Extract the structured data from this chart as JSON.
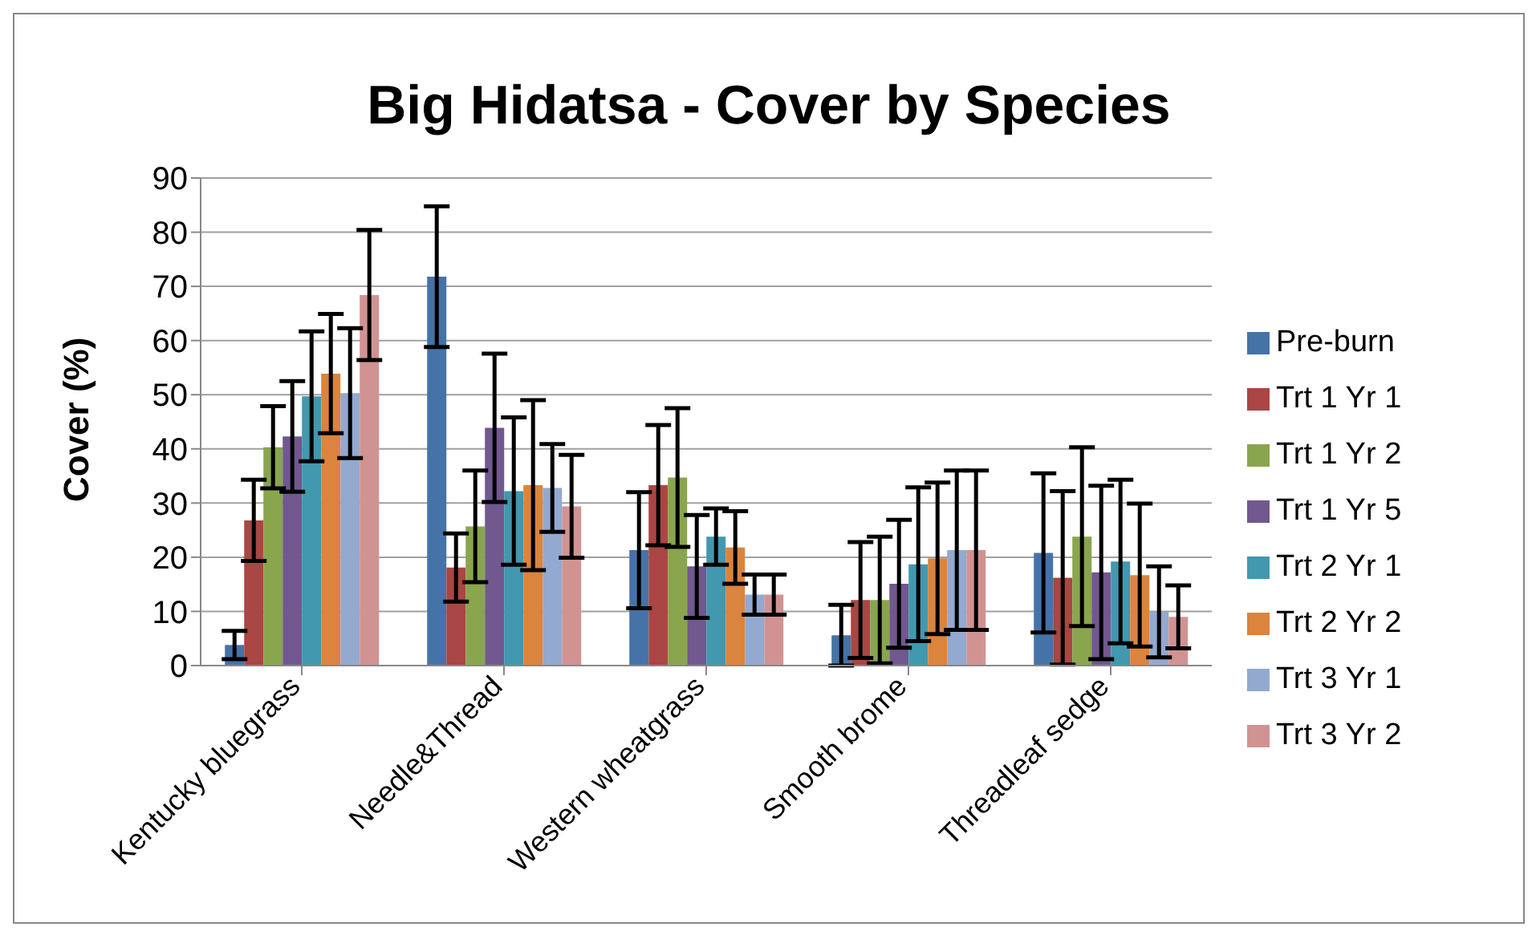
{
  "chart_data": {
    "type": "bar",
    "title": "Big Hidatsa - Cover by Species",
    "ylabel": "Cover (%)",
    "categories": [
      "Kentucky bluegrass",
      "Needle&Thread",
      "Western wheatgrass",
      "Smooth brome",
      "Threadleaf sedge"
    ],
    "series": [
      {
        "name": "Pre-burn",
        "color": "#4573a8",
        "values": [
          3.8,
          71.8,
          21.3,
          5.6,
          20.8
        ],
        "errors": [
          2.6,
          13,
          10.7,
          5.6,
          14.7
        ]
      },
      {
        "name": "Trt 1 Yr 1",
        "color": "#aa4643",
        "values": [
          26.8,
          18.1,
          33.3,
          12.1,
          16.2
        ],
        "errors": [
          7.5,
          6.3,
          11.1,
          10.7,
          16
        ]
      },
      {
        "name": "Trt 1 Yr 2",
        "color": "#89a54e",
        "values": [
          40.3,
          25.7,
          34.7,
          12.1,
          23.8
        ],
        "errors": [
          7.6,
          10.3,
          12.8,
          11.7,
          16.5
        ]
      },
      {
        "name": "Trt 1 Yr 5",
        "color": "#71588f",
        "values": [
          42.3,
          43.9,
          18.3,
          15.1,
          17.2
        ],
        "errors": [
          10.2,
          13.7,
          9.5,
          11.8,
          16
        ]
      },
      {
        "name": "Trt 2 Yr 1",
        "color": "#4198af",
        "values": [
          49.7,
          32.2,
          23.8,
          18.7,
          19.2
        ],
        "errors": [
          12,
          13.6,
          5.2,
          14.2,
          15.1
        ]
      },
      {
        "name": "Trt 2 Yr 2",
        "color": "#db843d",
        "values": [
          53.9,
          33.3,
          21.8,
          19.8,
          16.7
        ],
        "errors": [
          11,
          15.7,
          6.7,
          14,
          13.2
        ]
      },
      {
        "name": "Trt 3 Yr 1",
        "color": "#93a9cf",
        "values": [
          50.3,
          32.8,
          13.1,
          21.3,
          9.9
        ],
        "errors": [
          12,
          8.1,
          3.7,
          14.7,
          8.4
        ]
      },
      {
        "name": "Trt 3 Yr 2",
        "color": "#d19392",
        "values": [
          68.4,
          29.4,
          13.1,
          21.3,
          9
        ],
        "errors": [
          12,
          9.5,
          3.7,
          14.7,
          5.8
        ]
      }
    ],
    "ylim": [
      0,
      90
    ],
    "yticks": [
      0,
      10,
      20,
      30,
      40,
      50,
      60,
      70,
      80,
      90
    ],
    "grid": "y",
    "legend": "right"
  }
}
